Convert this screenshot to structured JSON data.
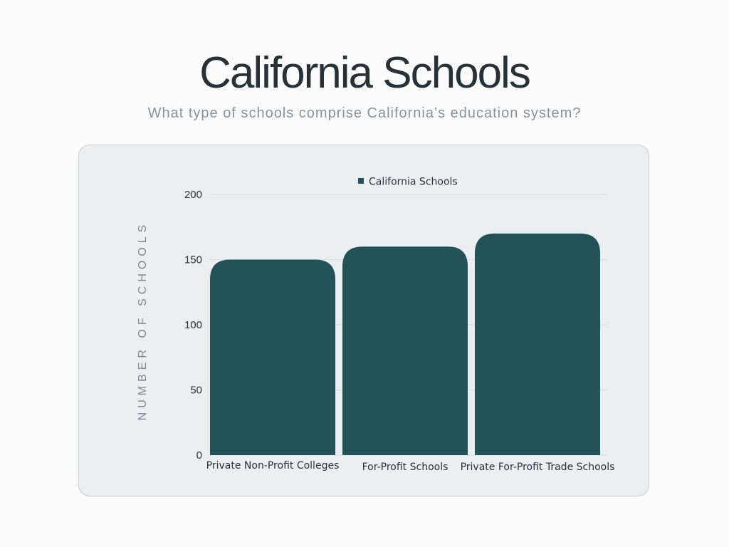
{
  "header": {
    "title": "California Schools",
    "subtitle": "What type of schools comprise California’s education system?"
  },
  "chart_data": {
    "type": "bar",
    "categories": [
      "Private Non-Profit Colleges",
      "For-Profit Schools",
      "Private For-Profit Trade Schools"
    ],
    "series": [
      {
        "name": "California Schools",
        "values": [
          150,
          160,
          170
        ],
        "color": "#225156"
      }
    ],
    "xlabel": "",
    "ylabel": "NUMBER OF SCHOOLS",
    "ylim": [
      0,
      200
    ],
    "yticks": [
      0,
      50,
      100,
      150,
      200
    ],
    "grid": true,
    "legend": "top-center"
  }
}
